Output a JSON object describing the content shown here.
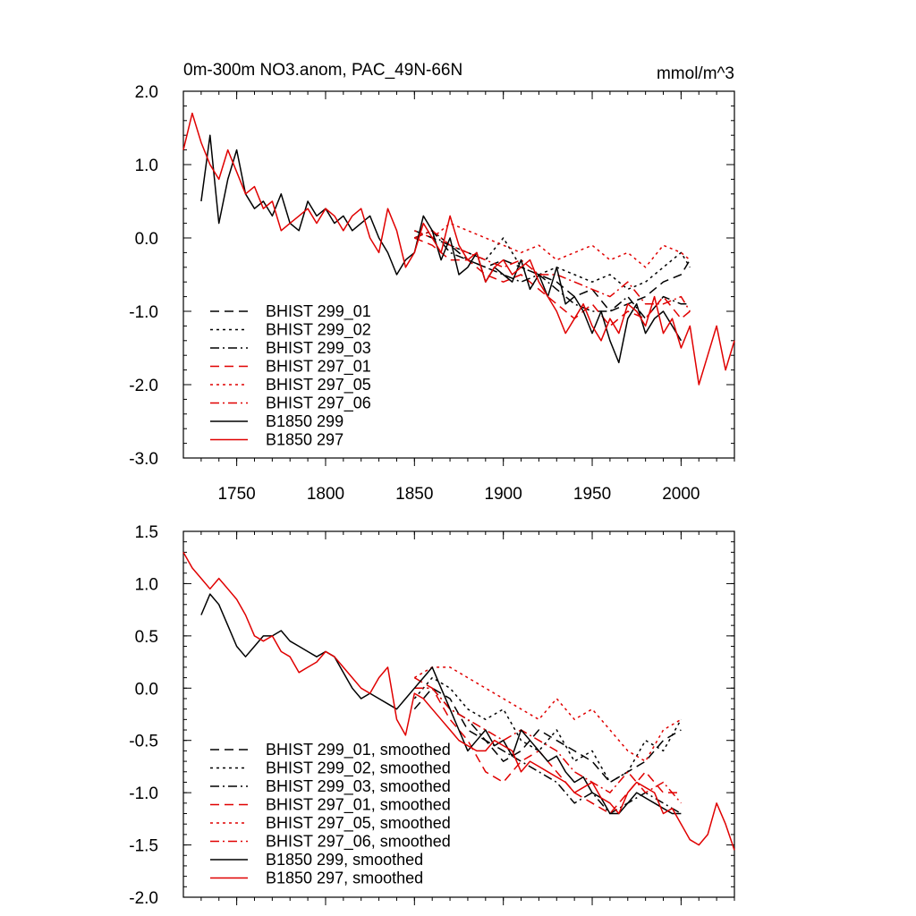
{
  "figure": {
    "title": "0m-300m NO3.anom, PAC_49N-66N",
    "units": "mmol/m^3"
  },
  "chart_data": [
    {
      "type": "line",
      "title": "0m-300m NO3.anom, PAC_49N-66N",
      "units": "mmol/m^3",
      "xlim": [
        1720,
        2030
      ],
      "ylim": [
        -3.0,
        2.0
      ],
      "xticks": [
        1750,
        1800,
        1850,
        1900,
        1950,
        2000
      ],
      "xtick_labels": [
        "1750",
        "1800",
        "1850",
        "1900",
        "1950",
        "2000"
      ],
      "yticks": [
        2.0,
        1.0,
        0.0,
        -1.0,
        -2.0,
        -3.0
      ],
      "ytick_labels": [
        "2.0",
        "1.0",
        "0.0",
        "-1.0",
        "-2.0",
        "-3.0"
      ],
      "legend_position": "lower-left",
      "series": [
        {
          "name": "BHIST 299_01",
          "color": "#000000",
          "dash": "longdash",
          "x": [
            1850,
            1860,
            1870,
            1880,
            1890,
            1900,
            1910,
            1920,
            1930,
            1940,
            1950,
            1960,
            1970,
            1980,
            1990,
            2000,
            2005
          ],
          "y": [
            0.1,
            0.0,
            -0.1,
            -0.3,
            -0.4,
            -0.3,
            -0.4,
            -0.5,
            -0.6,
            -0.8,
            -0.7,
            -1.0,
            -0.9,
            -0.8,
            -0.6,
            -0.5,
            -0.3
          ]
        },
        {
          "name": "BHIST 299_02",
          "color": "#000000",
          "dash": "dotted",
          "x": [
            1850,
            1860,
            1870,
            1880,
            1890,
            1900,
            1910,
            1920,
            1930,
            1940,
            1950,
            1960,
            1970,
            1980,
            1990,
            2000,
            2005
          ],
          "y": [
            0.0,
            0.1,
            -0.1,
            -0.2,
            -0.3,
            0.0,
            -0.4,
            -0.5,
            -0.4,
            -0.5,
            -0.6,
            -0.5,
            -0.7,
            -0.6,
            -0.4,
            -0.2,
            -0.4
          ]
        },
        {
          "name": "BHIST 299_03",
          "color": "#000000",
          "dash": "dashdot",
          "x": [
            1850,
            1860,
            1870,
            1880,
            1890,
            1900,
            1910,
            1920,
            1930,
            1940,
            1950,
            1960,
            1970,
            1980,
            1990,
            2000,
            2005
          ],
          "y": [
            0.0,
            0.1,
            -0.2,
            -0.3,
            -0.4,
            -0.5,
            -0.6,
            -0.5,
            -0.7,
            -0.9,
            -1.0,
            -1.0,
            -0.8,
            -1.1,
            -0.8,
            -0.9,
            -0.9
          ]
        },
        {
          "name": "BHIST 297_01",
          "color": "#e00000",
          "dash": "longdash",
          "x": [
            1850,
            1860,
            1870,
            1880,
            1890,
            1900,
            1910,
            1920,
            1930,
            1940,
            1950,
            1960,
            1970,
            1980,
            1990,
            2000,
            2005
          ],
          "y": [
            0.0,
            -0.1,
            -0.3,
            -0.3,
            -0.5,
            -0.6,
            -0.5,
            -0.7,
            -0.9,
            -1.1,
            -0.9,
            -1.2,
            -1.0,
            -1.1,
            -0.8,
            -1.1,
            -1.0
          ]
        },
        {
          "name": "BHIST 297_05",
          "color": "#e00000",
          "dash": "dotted",
          "x": [
            1850,
            1860,
            1870,
            1880,
            1890,
            1900,
            1910,
            1920,
            1930,
            1940,
            1950,
            1960,
            1970,
            1980,
            1990,
            2000,
            2005
          ],
          "y": [
            0.1,
            0.0,
            0.2,
            0.1,
            0.0,
            -0.1,
            -0.2,
            -0.1,
            -0.3,
            -0.2,
            -0.1,
            -0.3,
            -0.2,
            -0.4,
            -0.1,
            -0.2,
            -0.3
          ]
        },
        {
          "name": "BHIST 297_06",
          "color": "#e00000",
          "dash": "dashdot",
          "x": [
            1850,
            1860,
            1870,
            1880,
            1890,
            1900,
            1910,
            1920,
            1930,
            1940,
            1950,
            1960,
            1970,
            1980,
            1990,
            2000,
            2005
          ],
          "y": [
            0.0,
            0.1,
            -0.1,
            -0.2,
            -0.3,
            -0.4,
            -0.3,
            -0.5,
            -0.5,
            -0.6,
            -0.7,
            -0.8,
            -0.6,
            -0.9,
            -0.9,
            -0.8,
            -1.0
          ]
        },
        {
          "name": "B1850 299",
          "color": "#000000",
          "dash": "solid",
          "x": [
            1730,
            1735,
            1740,
            1745,
            1750,
            1755,
            1760,
            1765,
            1770,
            1775,
            1780,
            1785,
            1790,
            1795,
            1800,
            1805,
            1810,
            1815,
            1820,
            1825,
            1830,
            1835,
            1840,
            1845,
            1850,
            1855,
            1860,
            1865,
            1870,
            1875,
            1880,
            1885,
            1890,
            1895,
            1900,
            1905,
            1910,
            1915,
            1920,
            1925,
            1930,
            1935,
            1940,
            1945,
            1950,
            1955,
            1960,
            1965,
            1970,
            1975,
            1980,
            1985,
            1990,
            1995,
            2000
          ],
          "y": [
            0.5,
            1.4,
            0.2,
            0.8,
            1.2,
            0.6,
            0.4,
            0.5,
            0.3,
            0.6,
            0.2,
            0.1,
            0.5,
            0.3,
            0.4,
            0.2,
            0.3,
            0.1,
            0.2,
            0.3,
            0.0,
            -0.2,
            -0.5,
            -0.3,
            -0.2,
            0.3,
            0.1,
            -0.3,
            0.0,
            -0.5,
            -0.4,
            -0.2,
            -0.6,
            -0.4,
            -0.5,
            -0.6,
            -0.3,
            -0.7,
            -0.5,
            -0.8,
            -0.4,
            -0.9,
            -0.8,
            -1.0,
            -1.3,
            -1.0,
            -1.4,
            -1.7,
            -1.1,
            -0.9,
            -1.3,
            -1.1,
            -1.0,
            -1.2,
            -1.4
          ]
        },
        {
          "name": "B1850 297",
          "color": "#e00000",
          "dash": "solid",
          "x": [
            1720,
            1725,
            1730,
            1735,
            1740,
            1745,
            1750,
            1755,
            1760,
            1765,
            1770,
            1775,
            1780,
            1785,
            1790,
            1795,
            1800,
            1805,
            1810,
            1815,
            1820,
            1825,
            1830,
            1835,
            1840,
            1845,
            1850,
            1855,
            1860,
            1865,
            1870,
            1875,
            1880,
            1885,
            1890,
            1895,
            1900,
            1905,
            1910,
            1915,
            1920,
            1925,
            1930,
            1935,
            1940,
            1945,
            1950,
            1955,
            1960,
            1965,
            1970,
            1975,
            1980,
            1985,
            1990,
            1995,
            2000,
            2005,
            2010,
            2015,
            2020,
            2025,
            2030
          ],
          "y": [
            1.2,
            1.7,
            1.3,
            1.0,
            0.8,
            1.2,
            0.9,
            0.6,
            0.7,
            0.4,
            0.5,
            0.1,
            0.2,
            0.3,
            0.4,
            0.2,
            0.4,
            0.3,
            0.1,
            0.3,
            0.4,
            0.0,
            -0.2,
            0.4,
            0.1,
            -0.4,
            -0.2,
            0.2,
            0.0,
            -0.2,
            0.3,
            -0.1,
            -0.3,
            -0.2,
            -0.6,
            -0.4,
            -0.3,
            -0.5,
            -0.4,
            -0.3,
            -0.6,
            -0.8,
            -1.0,
            -1.3,
            -1.1,
            -0.9,
            -1.2,
            -1.4,
            -1.1,
            -1.3,
            -0.9,
            -1.0,
            -1.2,
            -0.8,
            -1.3,
            -1.1,
            -1.5,
            -1.2,
            -2.0,
            -1.6,
            -1.2,
            -1.8,
            -1.4
          ]
        }
      ]
    },
    {
      "type": "line",
      "xlim": [
        1720,
        2030
      ],
      "ylim": [
        -2.0,
        1.5
      ],
      "xticks": [
        1750,
        1800,
        1850,
        1900,
        1950,
        2000
      ],
      "xtick_labels": [],
      "yticks": [
        1.5,
        1.0,
        0.5,
        0.0,
        -0.5,
        -1.0,
        -1.5,
        -2.0
      ],
      "ytick_labels": [
        "1.5",
        "1.0",
        "0.5",
        "0.0",
        "-0.5",
        "-1.0",
        "-1.5",
        "-2.0"
      ],
      "legend_position": "lower-left",
      "series": [
        {
          "name": "BHIST 299_01, smoothed",
          "color": "#000000",
          "dash": "longdash",
          "x": [
            1850,
            1860,
            1870,
            1880,
            1890,
            1900,
            1910,
            1920,
            1930,
            1940,
            1950,
            1960,
            1970,
            1980,
            1990,
            2000
          ],
          "y": [
            -0.2,
            0.0,
            -0.1,
            -0.4,
            -0.5,
            -0.7,
            -0.6,
            -0.4,
            -0.5,
            -0.6,
            -0.7,
            -0.9,
            -0.8,
            -0.7,
            -0.5,
            -0.4
          ]
        },
        {
          "name": "BHIST 299_02, smoothed",
          "color": "#000000",
          "dash": "dotted",
          "x": [
            1850,
            1860,
            1870,
            1880,
            1890,
            1900,
            1910,
            1920,
            1930,
            1940,
            1950,
            1960,
            1970,
            1980,
            1990,
            2000
          ],
          "y": [
            -0.1,
            0.1,
            0.0,
            -0.2,
            -0.3,
            -0.2,
            -0.5,
            -0.6,
            -0.4,
            -0.7,
            -0.6,
            -0.9,
            -0.8,
            -0.5,
            -0.6,
            -0.3
          ]
        },
        {
          "name": "BHIST 299_03, smoothed",
          "color": "#000000",
          "dash": "dashdot",
          "x": [
            1850,
            1860,
            1870,
            1880,
            1890,
            1900,
            1910,
            1920,
            1930,
            1940,
            1950,
            1960,
            1970,
            1980,
            1990,
            2000
          ],
          "y": [
            0.0,
            0.0,
            -0.2,
            -0.3,
            -0.5,
            -0.6,
            -0.7,
            -0.8,
            -0.9,
            -1.1,
            -1.0,
            -1.2,
            -1.1,
            -1.0,
            -1.1,
            -1.2
          ]
        },
        {
          "name": "BHIST 297_01, smoothed",
          "color": "#e00000",
          "dash": "longdash",
          "x": [
            1850,
            1860,
            1870,
            1880,
            1890,
            1900,
            1910,
            1920,
            1930,
            1940,
            1950,
            1960,
            1970,
            1980,
            1990,
            2000
          ],
          "y": [
            0.1,
            0.0,
            -0.3,
            -0.5,
            -0.8,
            -0.9,
            -0.7,
            -0.6,
            -0.8,
            -1.0,
            -1.1,
            -1.2,
            -1.0,
            -0.8,
            -1.0,
            -1.0
          ]
        },
        {
          "name": "BHIST 297_05, smoothed",
          "color": "#e00000",
          "dash": "dotted",
          "x": [
            1850,
            1860,
            1870,
            1880,
            1890,
            1900,
            1910,
            1920,
            1930,
            1940,
            1950,
            1960,
            1970,
            1980,
            1990,
            2000
          ],
          "y": [
            0.1,
            0.2,
            0.2,
            0.1,
            0.0,
            -0.1,
            -0.2,
            -0.3,
            -0.1,
            -0.3,
            -0.2,
            -0.4,
            -0.6,
            -0.7,
            -0.4,
            -0.3
          ]
        },
        {
          "name": "BHIST 297_06, smoothed",
          "color": "#e00000",
          "dash": "dashdot",
          "x": [
            1850,
            1860,
            1870,
            1880,
            1890,
            1900,
            1910,
            1920,
            1930,
            1940,
            1950,
            1960,
            1970,
            1980,
            1990,
            2000
          ],
          "y": [
            0.0,
            0.0,
            -0.2,
            -0.3,
            -0.4,
            -0.5,
            -0.4,
            -0.5,
            -0.6,
            -0.8,
            -0.9,
            -1.0,
            -0.8,
            -1.0,
            -0.9,
            -1.1
          ]
        },
        {
          "name": "B1850 299, smoothed",
          "color": "#000000",
          "dash": "solid",
          "x": [
            1730,
            1735,
            1740,
            1745,
            1750,
            1755,
            1760,
            1765,
            1770,
            1775,
            1780,
            1785,
            1790,
            1795,
            1800,
            1805,
            1810,
            1815,
            1820,
            1825,
            1830,
            1835,
            1840,
            1845,
            1850,
            1855,
            1860,
            1865,
            1870,
            1875,
            1880,
            1885,
            1890,
            1895,
            1900,
            1905,
            1910,
            1915,
            1920,
            1925,
            1930,
            1935,
            1940,
            1945,
            1950,
            1955,
            1960,
            1965,
            1970,
            1975,
            1980,
            1985,
            1990,
            1995,
            2000
          ],
          "y": [
            0.7,
            0.9,
            0.8,
            0.6,
            0.4,
            0.3,
            0.4,
            0.5,
            0.5,
            0.55,
            0.45,
            0.4,
            0.35,
            0.3,
            0.35,
            0.3,
            0.15,
            0.0,
            -0.1,
            -0.05,
            -0.1,
            -0.15,
            -0.2,
            -0.1,
            0.0,
            0.1,
            0.2,
            0.0,
            -0.2,
            -0.4,
            -0.6,
            -0.5,
            -0.4,
            -0.55,
            -0.5,
            -0.65,
            -0.4,
            -0.5,
            -0.6,
            -0.7,
            -0.65,
            -0.8,
            -0.9,
            -0.85,
            -1.0,
            -1.05,
            -1.2,
            -1.2,
            -1.1,
            -1.0,
            -1.05,
            -1.1,
            -1.15,
            -1.2,
            -1.2
          ]
        },
        {
          "name": "B1850 297, smoothed",
          "color": "#e00000",
          "dash": "solid",
          "x": [
            1720,
            1725,
            1730,
            1735,
            1740,
            1745,
            1750,
            1755,
            1760,
            1765,
            1770,
            1775,
            1780,
            1785,
            1790,
            1795,
            1800,
            1805,
            1810,
            1815,
            1820,
            1825,
            1830,
            1835,
            1840,
            1845,
            1850,
            1855,
            1860,
            1865,
            1870,
            1875,
            1880,
            1885,
            1890,
            1895,
            1900,
            1905,
            1910,
            1915,
            1920,
            1925,
            1930,
            1935,
            1940,
            1945,
            1950,
            1955,
            1960,
            1965,
            1970,
            1975,
            1980,
            1985,
            1990,
            1995,
            2000,
            2005,
            2010,
            2015,
            2020,
            2025,
            2030
          ],
          "y": [
            1.3,
            1.15,
            1.05,
            0.95,
            1.05,
            0.95,
            0.85,
            0.7,
            0.5,
            0.45,
            0.5,
            0.35,
            0.3,
            0.15,
            0.2,
            0.25,
            0.35,
            0.3,
            0.2,
            0.1,
            0.0,
            -0.05,
            0.1,
            0.2,
            -0.3,
            -0.45,
            -0.05,
            -0.1,
            -0.2,
            -0.3,
            -0.4,
            -0.5,
            -0.55,
            -0.6,
            -0.6,
            -0.5,
            -0.55,
            -0.6,
            -0.8,
            -0.7,
            -0.75,
            -0.8,
            -0.85,
            -0.9,
            -1.0,
            -0.95,
            -0.9,
            -1.05,
            -1.1,
            -1.2,
            -1.0,
            -0.9,
            -0.95,
            -1.0,
            -1.2,
            -1.15,
            -1.3,
            -1.45,
            -1.5,
            -1.4,
            -1.1,
            -1.3,
            -1.55
          ]
        }
      ]
    }
  ]
}
